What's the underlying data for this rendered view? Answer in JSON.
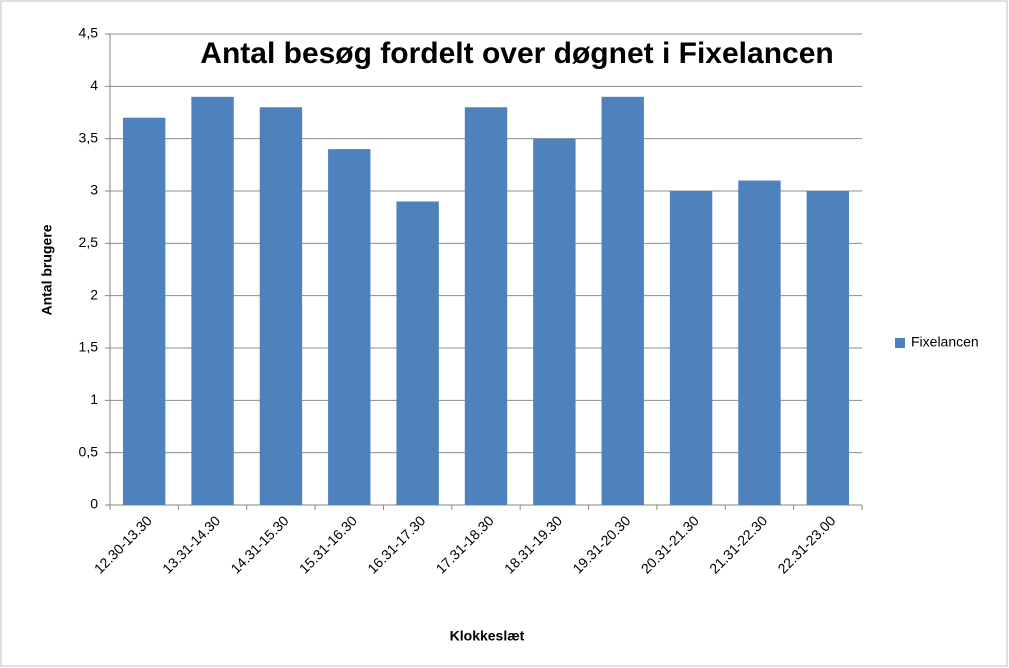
{
  "chart_data": {
    "type": "bar",
    "title": "Antal besøg fordelt over døgnet i Fixelancen",
    "x_label": "Klokkeslæt",
    "y_label": "Antal brugere",
    "categories": [
      "12.30-13.30",
      "13.31-14.30",
      "14.31-15.30",
      "15.31-16.30",
      "16.31-17.30",
      "17.31-18.30",
      "18.31-19.30",
      "19.31-20.30",
      "20.31-21.30",
      "21.31-22.30",
      "22.31-23.00"
    ],
    "series": [
      {
        "name": "Fixelancen",
        "color": "#4f81bd",
        "values": [
          3.7,
          3.9,
          3.8,
          3.4,
          2.9,
          3.8,
          3.5,
          3.9,
          3.0,
          3.1,
          3.0
        ]
      }
    ],
    "ylim": [
      0,
      4.5
    ],
    "yticks": [
      0,
      {
        "value": 0.5,
        "label": "0,5"
      },
      1,
      {
        "value": 1.5,
        "label": "1,5"
      },
      2,
      {
        "value": 2.5,
        "label": "2,5"
      },
      3,
      {
        "value": 3.5,
        "label": "3,5"
      },
      4,
      {
        "value": 4.5,
        "label": "4,5"
      }
    ],
    "grid": true,
    "legend": "right"
  }
}
